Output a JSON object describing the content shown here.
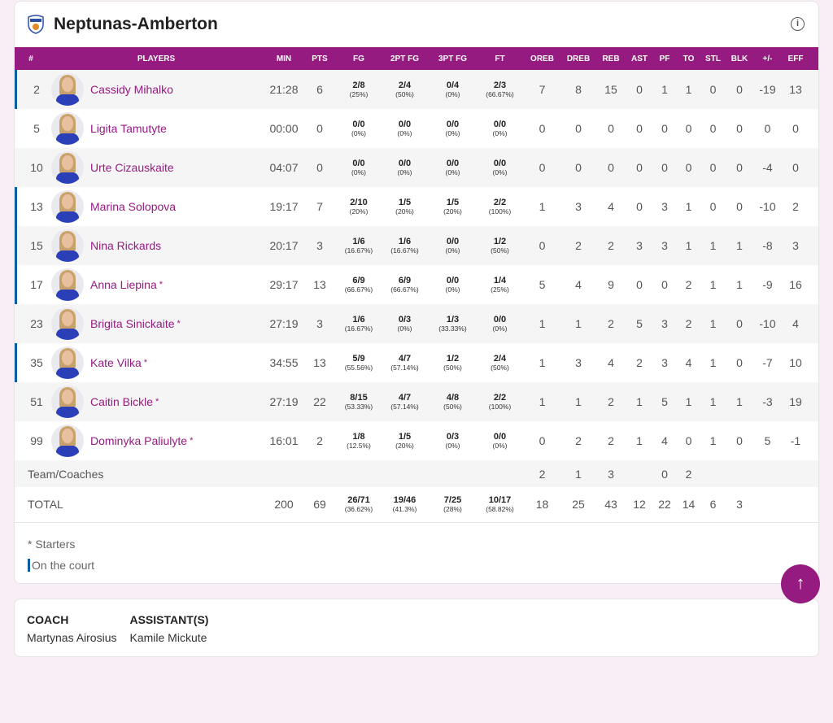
{
  "team": {
    "name": "Neptunas-Amberton",
    "logo": "team-crest-logo"
  },
  "colors": {
    "accent": "#951b81",
    "on_court": "#0b5f9e"
  },
  "columns": [
    "#",
    "PLAYERS",
    "MIN",
    "PTS",
    "FG",
    "2PT FG",
    "3PT FG",
    "FT",
    "OREB",
    "DREB",
    "REB",
    "AST",
    "PF",
    "TO",
    "STL",
    "BLK",
    "+/-",
    "EFF"
  ],
  "players": [
    {
      "num": "2",
      "name": "Cassidy Mihalko",
      "starter": "",
      "on_court": true,
      "min": "21:28",
      "pts": "6",
      "fg": "2/8",
      "fgp": "(25%)",
      "fg2": "2/4",
      "fg2p": "(50%)",
      "fg3": "0/4",
      "fg3p": "(0%)",
      "ft": "2/3",
      "ftp": "(66.67%)",
      "oreb": "7",
      "dreb": "8",
      "reb": "15",
      "ast": "0",
      "pf": "1",
      "to": "1",
      "stl": "0",
      "blk": "0",
      "pm": "-19",
      "eff": "13"
    },
    {
      "num": "5",
      "name": "Ligita Tamutyte",
      "starter": "",
      "on_court": false,
      "min": "00:00",
      "pts": "0",
      "fg": "0/0",
      "fgp": "(0%)",
      "fg2": "0/0",
      "fg2p": "(0%)",
      "fg3": "0/0",
      "fg3p": "(0%)",
      "ft": "0/0",
      "ftp": "(0%)",
      "oreb": "0",
      "dreb": "0",
      "reb": "0",
      "ast": "0",
      "pf": "0",
      "to": "0",
      "stl": "0",
      "blk": "0",
      "pm": "0",
      "eff": "0"
    },
    {
      "num": "10",
      "name": "Urte Cizauskaite",
      "starter": "",
      "on_court": false,
      "min": "04:07",
      "pts": "0",
      "fg": "0/0",
      "fgp": "(0%)",
      "fg2": "0/0",
      "fg2p": "(0%)",
      "fg3": "0/0",
      "fg3p": "(0%)",
      "ft": "0/0",
      "ftp": "(0%)",
      "oreb": "0",
      "dreb": "0",
      "reb": "0",
      "ast": "0",
      "pf": "0",
      "to": "0",
      "stl": "0",
      "blk": "0",
      "pm": "-4",
      "eff": "0"
    },
    {
      "num": "13",
      "name": "Marina Solopova",
      "starter": "",
      "on_court": true,
      "min": "19:17",
      "pts": "7",
      "fg": "2/10",
      "fgp": "(20%)",
      "fg2": "1/5",
      "fg2p": "(20%)",
      "fg3": "1/5",
      "fg3p": "(20%)",
      "ft": "2/2",
      "ftp": "(100%)",
      "oreb": "1",
      "dreb": "3",
      "reb": "4",
      "ast": "0",
      "pf": "3",
      "to": "1",
      "stl": "0",
      "blk": "0",
      "pm": "-10",
      "eff": "2"
    },
    {
      "num": "15",
      "name": "Nina Rickards",
      "starter": "",
      "on_court": true,
      "min": "20:17",
      "pts": "3",
      "fg": "1/6",
      "fgp": "(16.67%)",
      "fg2": "1/6",
      "fg2p": "(16.67%)",
      "fg3": "0/0",
      "fg3p": "(0%)",
      "ft": "1/2",
      "ftp": "(50%)",
      "oreb": "0",
      "dreb": "2",
      "reb": "2",
      "ast": "3",
      "pf": "3",
      "to": "1",
      "stl": "1",
      "blk": "1",
      "pm": "-8",
      "eff": "3"
    },
    {
      "num": "17",
      "name": "Anna Liepina",
      "starter": "*",
      "on_court": true,
      "min": "29:17",
      "pts": "13",
      "fg": "6/9",
      "fgp": "(66.67%)",
      "fg2": "6/9",
      "fg2p": "(66.67%)",
      "fg3": "0/0",
      "fg3p": "(0%)",
      "ft": "1/4",
      "ftp": "(25%)",
      "oreb": "5",
      "dreb": "4",
      "reb": "9",
      "ast": "0",
      "pf": "0",
      "to": "2",
      "stl": "1",
      "blk": "1",
      "pm": "-9",
      "eff": "16"
    },
    {
      "num": "23",
      "name": "Brigita Sinickaite",
      "starter": "*",
      "on_court": false,
      "min": "27:19",
      "pts": "3",
      "fg": "1/6",
      "fgp": "(16.67%)",
      "fg2": "0/3",
      "fg2p": "(0%)",
      "fg3": "1/3",
      "fg3p": "(33.33%)",
      "ft": "0/0",
      "ftp": "(0%)",
      "oreb": "1",
      "dreb": "1",
      "reb": "2",
      "ast": "5",
      "pf": "3",
      "to": "2",
      "stl": "1",
      "blk": "0",
      "pm": "-10",
      "eff": "4"
    },
    {
      "num": "35",
      "name": "Kate Vilka",
      "starter": "*",
      "on_court": true,
      "min": "34:55",
      "pts": "13",
      "fg": "5/9",
      "fgp": "(55.56%)",
      "fg2": "4/7",
      "fg2p": "(57.14%)",
      "fg3": "1/2",
      "fg3p": "(50%)",
      "ft": "2/4",
      "ftp": "(50%)",
      "oreb": "1",
      "dreb": "3",
      "reb": "4",
      "ast": "2",
      "pf": "3",
      "to": "4",
      "stl": "1",
      "blk": "0",
      "pm": "-7",
      "eff": "10"
    },
    {
      "num": "51",
      "name": "Caitin Bickle",
      "starter": "*",
      "on_court": false,
      "min": "27:19",
      "pts": "22",
      "fg": "8/15",
      "fgp": "(53.33%)",
      "fg2": "4/7",
      "fg2p": "(57.14%)",
      "fg3": "4/8",
      "fg3p": "(50%)",
      "ft": "2/2",
      "ftp": "(100%)",
      "oreb": "1",
      "dreb": "1",
      "reb": "2",
      "ast": "1",
      "pf": "5",
      "to": "1",
      "stl": "1",
      "blk": "1",
      "pm": "-3",
      "eff": "19"
    },
    {
      "num": "99",
      "name": "Dominyka Paliulyte",
      "starter": "*",
      "on_court": false,
      "min": "16:01",
      "pts": "2",
      "fg": "1/8",
      "fgp": "(12.5%)",
      "fg2": "1/5",
      "fg2p": "(20%)",
      "fg3": "0/3",
      "fg3p": "(0%)",
      "ft": "0/0",
      "ftp": "(0%)",
      "oreb": "0",
      "dreb": "2",
      "reb": "2",
      "ast": "1",
      "pf": "4",
      "to": "0",
      "stl": "1",
      "blk": "0",
      "pm": "5",
      "eff": "-1"
    }
  ],
  "team_row": {
    "label": "Team/Coaches",
    "oreb": "2",
    "dreb": "1",
    "reb": "3",
    "ast": "",
    "pf": "0",
    "to": "2",
    "stl": "",
    "blk": "",
    "pm": "",
    "eff": ""
  },
  "total": {
    "label": "TOTAL",
    "min": "200",
    "pts": "69",
    "fg": "26/71",
    "fgp": "(36.62%)",
    "fg2": "19/46",
    "fg2p": "(41.3%)",
    "fg3": "7/25",
    "fg3p": "(28%)",
    "ft": "10/17",
    "ftp": "(58.82%)",
    "oreb": "18",
    "dreb": "25",
    "reb": "43",
    "ast": "12",
    "pf": "22",
    "to": "14",
    "stl": "6",
    "blk": "3",
    "pm": "",
    "eff": ""
  },
  "legend": {
    "starters": "* Starters",
    "on_court": "On the court"
  },
  "staff": {
    "coach_label": "COACH",
    "coach": "Martynas Airosius",
    "assistant_label": "ASSISTANT(S)",
    "assistant": "Kamile Mickute"
  },
  "scroll_top_icon": "arrow-up-icon"
}
